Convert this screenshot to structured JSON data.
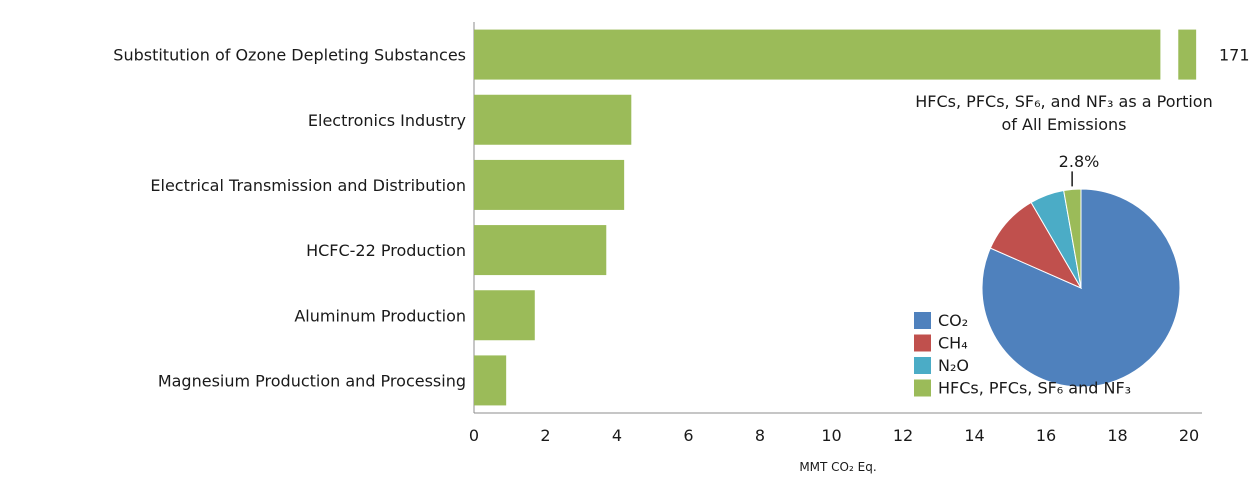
{
  "chart_data": [
    {
      "type": "bar",
      "orientation": "horizontal",
      "categories": [
        "Substitution of Ozone Depleting Substances",
        "Electronics Industry",
        "Electrical Transmission and Distribution",
        "HCFC-22 Production",
        "Aluminum Production",
        "Magnesium Production and Processing"
      ],
      "values": [
        171,
        4.4,
        4.2,
        3.7,
        1.7,
        0.9
      ],
      "value_labels": [
        "171",
        "",
        "",
        "",
        "",
        ""
      ],
      "broken_axis_categories": [
        "Substitution of Ozone Depleting Substances"
      ],
      "xlabel": "MMT CO₂ Eq.",
      "xlim": [
        0,
        20
      ],
      "xticks": [
        "0",
        "2",
        "4",
        "6",
        "8",
        "10",
        "12",
        "14",
        "16",
        "18",
        "20"
      ],
      "grid": false,
      "color": "#9bbb59"
    },
    {
      "type": "pie",
      "title": "HFCs, PFCs, SF₆, and NF₃ as a Portion of All Emissions",
      "labels": [
        "CO₂",
        "CH₄",
        "N₂O",
        "HFCs, PFCs, SF₆ and NF₃"
      ],
      "values": [
        81.6,
        10.0,
        5.6,
        2.8
      ],
      "colors": [
        "#4f81bd",
        "#c0504d",
        "#4bacc6",
        "#9bbb59"
      ],
      "callout_label": "2.8%",
      "legend_position": "left"
    }
  ]
}
